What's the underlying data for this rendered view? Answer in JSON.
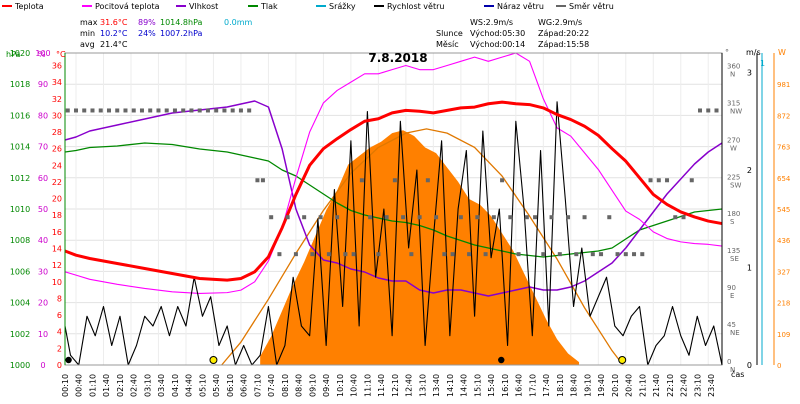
{
  "chart_data": {
    "type": "line",
    "title": "7.8.2018",
    "legend": [
      {
        "label": "Teplota",
        "color": "#ff0000"
      },
      {
        "label": "Pocitová teplota",
        "color": "#ff00ff"
      },
      {
        "label": "Vlhkost",
        "color": "#8800cc"
      },
      {
        "label": "Tlak",
        "color": "#008800"
      },
      {
        "label": "Srážky",
        "color": "#00aacc"
      },
      {
        "label": "Rychlost větru",
        "color": "#000000"
      },
      {
        "label": "Náraz větru",
        "color": "#0000aa"
      },
      {
        "label": "Směr větru",
        "color": "#666666"
      }
    ],
    "stats": {
      "max": {
        "label": "max",
        "temp": "31.6°C",
        "hum": "89%",
        "press": "1014.8hPa",
        "rain": "0.0mm"
      },
      "min": {
        "label": "min",
        "temp": "10.2°C",
        "hum": "24%",
        "press": "1007.2hPa"
      },
      "avg": {
        "label": "avg",
        "temp": "21.4°C"
      }
    },
    "wind_info": {
      "ws": "WS:2.9m/s",
      "wg": "WG:2.9m/s"
    },
    "sun": {
      "label": "Slunce",
      "rise": "Východ:05:30",
      "set": "Západ:20:22"
    },
    "moon": {
      "label": "Měsíc",
      "rise": "Východ:00:14",
      "set": "Západ:15:58"
    },
    "axis_units": {
      "hpa": "hPa",
      "pct": "%",
      "degc": "°C",
      "deg": "°",
      "ms": "m/s",
      "wm2": "W"
    },
    "left_ticks": {
      "hpa": [
        "1000",
        "1002",
        "1004",
        "1006",
        "1008",
        "1010",
        "1012",
        "1014",
        "1016",
        "1018",
        "1020"
      ],
      "pct": [
        "0",
        "10",
        "20",
        "30",
        "40",
        "50",
        "60",
        "70",
        "80",
        "90",
        "100"
      ],
      "temp": [
        "0",
        "2",
        "4",
        "6",
        "8",
        "10",
        "12",
        "14",
        "16",
        "18",
        "20",
        "22",
        "24",
        "26",
        "28",
        "30",
        "32",
        "34",
        "36"
      ]
    },
    "right_ticks": {
      "deg": [
        {
          "deg": "0",
          "dir": "N"
        },
        {
          "deg": "45",
          "dir": "NE"
        },
        {
          "deg": "90",
          "dir": "E"
        },
        {
          "deg": "135",
          "dir": "SE"
        },
        {
          "deg": "180",
          "dir": "S"
        },
        {
          "deg": "225",
          "dir": "SW"
        },
        {
          "deg": "270",
          "dir": "W"
        },
        {
          "deg": "315",
          "dir": "NW"
        },
        {
          "deg": "360",
          "dir": "N"
        }
      ],
      "ms": [
        "0",
        "1",
        "2",
        "3"
      ],
      "rain_top": "1",
      "wm2": [
        "0",
        "109",
        "218",
        "327",
        "436",
        "545",
        "654",
        "763",
        "872",
        "981"
      ]
    },
    "xlabel": "čas",
    "x_labels": [
      "00:10",
      "00:40",
      "01:10",
      "01:40",
      "02:10",
      "02:40",
      "03:10",
      "03:40",
      "04:10",
      "04:40",
      "05:10",
      "05:40",
      "06:10",
      "06:40",
      "07:10",
      "07:40",
      "08:10",
      "08:40",
      "09:10",
      "09:40",
      "10:10",
      "10:40",
      "11:10",
      "11:40",
      "12:10",
      "12:40",
      "13:10",
      "13:40",
      "14:10",
      "14:40",
      "15:10",
      "15:40",
      "16:10",
      "16:40",
      "17:10",
      "17:40",
      "18:10",
      "18:40",
      "19:10",
      "19:40",
      "20:10",
      "20:40",
      "21:10",
      "21:40",
      "22:10",
      "22:40",
      "23:10",
      "23:40"
    ],
    "ranges": {
      "temp": [
        0,
        37.5
      ],
      "humidity": [
        0,
        104
      ],
      "pressure": [
        1000,
        1020.8
      ],
      "wind": [
        0,
        3.2
      ],
      "direction": [
        0,
        380
      ],
      "solar": [
        0,
        1090
      ],
      "x_hours": [
        0.1,
        24
      ]
    },
    "series": {
      "temperature": {
        "name": "Teplota",
        "color": "#ff0000",
        "x": [
          0.1,
          0.5,
          1,
          2,
          3,
          4,
          5,
          6,
          6.5,
          7,
          7.5,
          8,
          8.5,
          9,
          9.5,
          10,
          10.5,
          11,
          11.5,
          12,
          12.5,
          13,
          13.5,
          14,
          14.5,
          15,
          15.5,
          16,
          16.5,
          17,
          17.5,
          18,
          18.5,
          19,
          19.5,
          20,
          20.5,
          21,
          21.5,
          22,
          22.5,
          23,
          23.5,
          24
        ],
        "y": [
          13.7,
          13.2,
          12.8,
          12.2,
          11.6,
          11.0,
          10.4,
          10.2,
          10.4,
          11.2,
          13.0,
          16.5,
          20.5,
          24.0,
          26.0,
          27.2,
          28.3,
          29.3,
          29.6,
          30.3,
          30.6,
          30.5,
          30.3,
          30.6,
          30.9,
          31.0,
          31.4,
          31.6,
          31.4,
          31.3,
          30.9,
          30.1,
          29.5,
          28.7,
          27.6,
          26.0,
          24.5,
          22.5,
          20.5,
          19.3,
          18.4,
          17.8,
          17.3,
          17.0
        ]
      },
      "feels_like": {
        "name": "Pocitová teplota",
        "color": "#ff00ff",
        "x": [
          0.1,
          0.5,
          1,
          2,
          3,
          4,
          5,
          6,
          6.5,
          7,
          7.5,
          8,
          8.5,
          9,
          9.5,
          10,
          10.5,
          11,
          11.5,
          12,
          12.5,
          13,
          13.5,
          14,
          14.5,
          15,
          15.5,
          16,
          16.5,
          17,
          17.5,
          18,
          18.5,
          19,
          19.5,
          20,
          20.5,
          21,
          21.5,
          22,
          22.5,
          23,
          23.5,
          24
        ],
        "y": [
          11.2,
          10.8,
          10.3,
          9.7,
          9.2,
          8.8,
          8.6,
          8.7,
          9.0,
          10.0,
          12.5,
          16.5,
          22.5,
          28.0,
          31.5,
          33.0,
          34.0,
          35.0,
          35.0,
          35.5,
          36.0,
          35.5,
          35.5,
          36.0,
          36.5,
          37.0,
          36.5,
          37.0,
          37.5,
          36.5,
          32.0,
          28.5,
          27.5,
          25.5,
          23.5,
          21.0,
          18.5,
          17.5,
          16.0,
          15.2,
          14.8,
          14.6,
          14.5,
          14.3
        ]
      },
      "humidity": {
        "name": "Vlhkost",
        "color": "#8800cc",
        "x": [
          0.1,
          0.5,
          1,
          2,
          3,
          4,
          5,
          6,
          6.5,
          7,
          7.5,
          8,
          8.5,
          9,
          9.5,
          10,
          10.5,
          11,
          11.5,
          12,
          12.5,
          13,
          13.5,
          14,
          14.5,
          15,
          15.5,
          16,
          16.5,
          17,
          17.5,
          18,
          18.5,
          19,
          19.5,
          20,
          20.5,
          21,
          21.5,
          22,
          22.5,
          23,
          23.5,
          24
        ],
        "y": [
          75,
          76,
          78,
          80,
          82,
          84,
          85,
          86,
          87,
          88,
          86,
          72,
          52,
          40,
          35,
          34,
          32,
          31,
          29,
          28,
          28,
          25,
          24,
          25,
          25,
          24,
          23,
          24,
          25,
          26,
          25,
          25,
          26,
          28,
          31,
          34,
          39,
          45,
          51,
          57,
          62,
          67,
          71,
          74
        ]
      },
      "pressure": {
        "name": "Tlak",
        "color": "#008800",
        "x": [
          0.1,
          0.5,
          1,
          2,
          3,
          4,
          5,
          6,
          6.5,
          7,
          7.5,
          8,
          8.5,
          9,
          9.5,
          10,
          10.5,
          11,
          11.5,
          12,
          12.5,
          13,
          13.5,
          14,
          14.5,
          15,
          15.5,
          16,
          16.5,
          17,
          17.5,
          18,
          18.5,
          19,
          19.5,
          20,
          20.5,
          21,
          21.5,
          22,
          22.5,
          23,
          23.5,
          24
        ],
        "y": [
          1014.2,
          1014.3,
          1014.5,
          1014.6,
          1014.8,
          1014.7,
          1014.4,
          1014.2,
          1014.0,
          1013.8,
          1013.6,
          1013.0,
          1012.6,
          1012.0,
          1011.4,
          1010.8,
          1010.3,
          1010.0,
          1009.8,
          1009.6,
          1009.5,
          1009.3,
          1009.0,
          1008.6,
          1008.3,
          1008.0,
          1007.8,
          1007.6,
          1007.4,
          1007.3,
          1007.2,
          1007.3,
          1007.4,
          1007.5,
          1007.6,
          1007.8,
          1008.4,
          1009.0,
          1009.3,
          1009.6,
          1009.9,
          1010.2,
          1010.3,
          1010.4
        ]
      },
      "solar": {
        "name": "Sluneční záření",
        "color": "#ff8000",
        "x": [
          7.2,
          7.6,
          8.0,
          8.4,
          8.8,
          9.2,
          9.6,
          10.0,
          10.4,
          10.8,
          11.2,
          11.6,
          12.0,
          12.4,
          12.8,
          13.2,
          13.6,
          14.0,
          14.4,
          14.8,
          15.2,
          15.6,
          16.0,
          16.4,
          16.8,
          17.2,
          17.6,
          18.0,
          18.4,
          18.8
        ],
        "y": [
          30,
          100,
          190,
          280,
          360,
          450,
          540,
          610,
          700,
          730,
          760,
          780,
          810,
          820,
          800,
          760,
          740,
          690,
          640,
          580,
          560,
          520,
          460,
          400,
          320,
          240,
          160,
          90,
          40,
          10
        ]
      },
      "theoretical_solar": {
        "name": "Teoretické záření",
        "color": "#ff8000",
        "x": [
          5.8,
          6.5,
          7.5,
          8.5,
          9.5,
          10.5,
          11.5,
          12.5,
          13.25,
          14,
          15,
          16,
          17,
          18,
          19,
          20,
          20.4
        ],
        "y": [
          0,
          80,
          230,
          390,
          540,
          670,
          760,
          810,
          825,
          810,
          760,
          660,
          520,
          370,
          200,
          50,
          0
        ]
      },
      "wind_speed": {
        "name": "Rychlost větru",
        "color": "#000000",
        "x": [
          0.1,
          0.3,
          0.6,
          0.9,
          1.2,
          1.5,
          1.8,
          2.1,
          2.4,
          2.7,
          3.0,
          3.3,
          3.6,
          3.9,
          4.2,
          4.5,
          4.8,
          5.1,
          5.4,
          5.7,
          6.0,
          6.3,
          6.6,
          6.9,
          7.2,
          7.5,
          7.8,
          8.1,
          8.4,
          8.7,
          9.0,
          9.3,
          9.6,
          9.9,
          10.2,
          10.5,
          10.8,
          11.1,
          11.4,
          11.7,
          12.0,
          12.3,
          12.6,
          12.9,
          13.2,
          13.5,
          13.8,
          14.1,
          14.4,
          14.7,
          15.0,
          15.3,
          15.6,
          15.9,
          16.2,
          16.5,
          16.8,
          17.1,
          17.4,
          17.7,
          18.0,
          18.3,
          18.6,
          18.9,
          19.2,
          19.5,
          19.8,
          20.1,
          20.4,
          20.7,
          21.0,
          21.3,
          21.6,
          21.9,
          22.2,
          22.5,
          22.8,
          23.1,
          23.4,
          23.7,
          24.0
        ],
        "y": [
          0.4,
          0.1,
          0.0,
          0.5,
          0.3,
          0.6,
          0.2,
          0.5,
          0.0,
          0.2,
          0.5,
          0.4,
          0.6,
          0.3,
          0.6,
          0.4,
          0.9,
          0.5,
          0.7,
          0.2,
          0.4,
          0.0,
          0.2,
          0.0,
          0.1,
          0.6,
          0.0,
          0.2,
          0.9,
          0.4,
          0.3,
          1.5,
          0.2,
          1.8,
          0.6,
          2.3,
          0.4,
          2.6,
          0.9,
          1.6,
          0.3,
          2.5,
          1.2,
          2.0,
          0.2,
          1.3,
          2.3,
          0.3,
          1.6,
          2.2,
          0.5,
          2.4,
          1.1,
          1.6,
          0.2,
          2.5,
          1.6,
          0.3,
          2.2,
          0.4,
          2.7,
          1.7,
          0.6,
          1.2,
          0.5,
          0.7,
          0.9,
          0.4,
          0.3,
          0.5,
          0.6,
          0.0,
          0.2,
          0.3,
          0.6,
          0.3,
          0.1,
          0.5,
          0.2,
          0.4,
          0.0
        ]
      },
      "wind_gust": {
        "name": "Náraz větru",
        "color": "#0000aa",
        "x": [
          0.1,
          1,
          2,
          3,
          4,
          5,
          6,
          7,
          8,
          9,
          10,
          11,
          12,
          13,
          14,
          15,
          16,
          17,
          18,
          19,
          20,
          21,
          22,
          23,
          24
        ],
        "y": [
          0,
          0,
          0,
          0,
          0,
          0,
          0,
          0,
          0,
          0,
          0,
          0,
          0,
          0,
          0,
          0,
          0,
          0,
          0,
          0,
          0,
          0,
          0,
          0,
          0
        ]
      },
      "wind_direction": {
        "name": "Směr větru",
        "color": "#666666",
        "x": [
          0.2,
          0.5,
          0.8,
          1.1,
          1.4,
          1.7,
          2.0,
          2.3,
          2.6,
          2.9,
          3.2,
          3.5,
          3.8,
          4.1,
          4.4,
          4.7,
          5.0,
          5.3,
          5.6,
          5.9,
          6.2,
          6.5,
          6.8,
          7.1,
          7.3,
          7.6,
          7.9,
          8.2,
          8.5,
          8.8,
          9.1,
          9.4,
          9.7,
          10.0,
          10.3,
          10.6,
          10.9,
          11.2,
          11.5,
          11.8,
          12.1,
          12.4,
          12.7,
          13.0,
          13.3,
          13.6,
          13.9,
          14.2,
          14.5,
          14.8,
          15.1,
          15.4,
          15.7,
          16.0,
          16.3,
          16.6,
          16.9,
          17.2,
          17.5,
          17.8,
          18.1,
          18.4,
          18.7,
          19.0,
          19.3,
          19.6,
          19.9,
          20.2,
          20.5,
          20.8,
          21.1,
          21.4,
          21.7,
          22.0,
          22.3,
          22.6,
          22.9,
          23.2,
          23.5,
          23.8
        ],
        "y": [
          310,
          310,
          310,
          310,
          310,
          310,
          310,
          310,
          310,
          310,
          310,
          310,
          310,
          310,
          310,
          310,
          310,
          310,
          310,
          310,
          310,
          310,
          310,
          225,
          225,
          180,
          135,
          180,
          135,
          180,
          135,
          180,
          135,
          180,
          135,
          135,
          225,
          180,
          135,
          180,
          225,
          180,
          135,
          180,
          225,
          180,
          135,
          135,
          180,
          135,
          180,
          135,
          180,
          225,
          180,
          135,
          180,
          180,
          135,
          180,
          135,
          180,
          135,
          180,
          135,
          135,
          180,
          135,
          135,
          135,
          135,
          225,
          225,
          225,
          180,
          180,
          225,
          310,
          310,
          310
        ]
      },
      "sun_moon_markers": {
        "name": "Východ/západ",
        "x": [
          0.23,
          5.5,
          15.97,
          20.37
        ],
        "kinds": [
          "moon",
          "sun",
          "moon",
          "sun"
        ]
      }
    }
  }
}
